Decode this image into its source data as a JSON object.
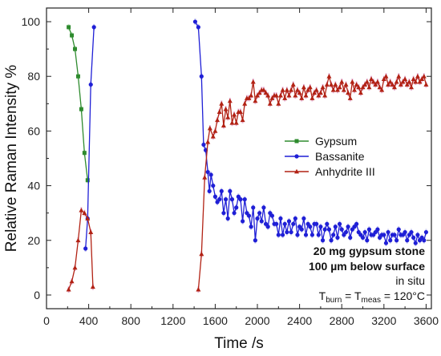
{
  "chart_data": {
    "type": "line",
    "xlabel": "Time /s",
    "ylabel": "Relative Raman Intensity %",
    "xlim": [
      0,
      3650
    ],
    "ylim": [
      -5,
      105
    ],
    "xticks": [
      0,
      400,
      800,
      1200,
      1600,
      2000,
      2400,
      2800,
      3200,
      3600
    ],
    "yticks": [
      0,
      20,
      40,
      60,
      80,
      100
    ],
    "grid": false,
    "legend_position": "center-right",
    "series": [
      {
        "name": "Gypsum",
        "color": "#2e8b2e",
        "marker": "square",
        "points": [
          [
            210,
            98
          ],
          [
            240,
            95
          ],
          [
            270,
            90
          ],
          [
            300,
            80
          ],
          [
            330,
            68
          ],
          [
            360,
            52
          ],
          [
            390,
            42
          ]
        ]
      },
      {
        "name": "Bassanite",
        "color": "#1f1fd6",
        "marker": "circle",
        "segments": [
          [
            [
              370,
              17
            ],
            [
              390,
              28
            ],
            [
              420,
              77
            ],
            [
              450,
              98
            ]
          ],
          [
            [
              1410,
              100
            ],
            [
              1440,
              98
            ],
            [
              1470,
              80
            ],
            [
              1490,
              55
            ],
            [
              1510,
              53
            ],
            [
              1530,
              45
            ],
            [
              1545,
              38
            ],
            [
              1560,
              44
            ],
            [
              1580,
              40
            ],
            [
              1600,
              36
            ],
            [
              1620,
              34
            ],
            [
              1640,
              35
            ],
            [
              1660,
              38
            ],
            [
              1680,
              30
            ],
            [
              1700,
              35
            ],
            [
              1720,
              28
            ],
            [
              1740,
              38
            ],
            [
              1760,
              35
            ],
            [
              1780,
              30
            ],
            [
              1800,
              32
            ],
            [
              1820,
              36
            ],
            [
              1840,
              35
            ],
            [
              1860,
              27
            ],
            [
              1880,
              35
            ],
            [
              1900,
              30
            ],
            [
              1920,
              29
            ],
            [
              1940,
              25
            ],
            [
              1960,
              32
            ],
            [
              1980,
              20
            ],
            [
              2000,
              28
            ],
            [
              2020,
              30
            ],
            [
              2040,
              27
            ],
            [
              2060,
              32
            ],
            [
              2080,
              26
            ],
            [
              2100,
              25
            ],
            [
              2120,
              30
            ],
            [
              2140,
              29
            ],
            [
              2160,
              26
            ],
            [
              2180,
              26
            ],
            [
              2200,
              22
            ],
            [
              2220,
              28
            ],
            [
              2240,
              22
            ],
            [
              2260,
              26
            ],
            [
              2280,
              23
            ],
            [
              2300,
              27
            ],
            [
              2320,
              23
            ],
            [
              2340,
              26
            ],
            [
              2360,
              28
            ],
            [
              2380,
              22
            ],
            [
              2400,
              25
            ],
            [
              2420,
              24
            ],
            [
              2440,
              28
            ],
            [
              2460,
              22
            ],
            [
              2480,
              26
            ],
            [
              2500,
              25
            ],
            [
              2520,
              22
            ],
            [
              2540,
              26
            ],
            [
              2560,
              26
            ],
            [
              2580,
              22
            ],
            [
              2600,
              25
            ],
            [
              2620,
              20
            ],
            [
              2640,
              24
            ],
            [
              2660,
              26
            ],
            [
              2680,
              24
            ],
            [
              2700,
              20
            ],
            [
              2720,
              22
            ],
            [
              2740,
              25
            ],
            [
              2760,
              21
            ],
            [
              2780,
              26
            ],
            [
              2800,
              24
            ],
            [
              2820,
              22
            ],
            [
              2840,
              23
            ],
            [
              2860,
              25
            ],
            [
              2880,
              21
            ],
            [
              2900,
              24
            ],
            [
              2920,
              25
            ],
            [
              2940,
              26
            ],
            [
              2960,
              23
            ],
            [
              2980,
              22
            ],
            [
              3000,
              21
            ],
            [
              3020,
              23
            ],
            [
              3040,
              20
            ],
            [
              3060,
              24
            ],
            [
              3080,
              22
            ],
            [
              3100,
              22
            ],
            [
              3120,
              23
            ],
            [
              3140,
              24
            ],
            [
              3160,
              21
            ],
            [
              3180,
              22
            ],
            [
              3200,
              22
            ],
            [
              3220,
              19
            ],
            [
              3240,
              23
            ],
            [
              3260,
              20
            ],
            [
              3280,
              22
            ],
            [
              3300,
              22
            ],
            [
              3320,
              20
            ],
            [
              3340,
              24
            ],
            [
              3360,
              22
            ],
            [
              3380,
              22
            ],
            [
              3400,
              23
            ],
            [
              3420,
              20
            ],
            [
              3440,
              22
            ],
            [
              3460,
              23
            ],
            [
              3480,
              21
            ],
            [
              3500,
              19
            ],
            [
              3520,
              22
            ],
            [
              3540,
              20
            ],
            [
              3560,
              21
            ],
            [
              3580,
              20
            ],
            [
              3600,
              23
            ]
          ]
        ]
      },
      {
        "name": "Anhydrite III",
        "color": "#b22214",
        "marker": "triangle",
        "segments": [
          [
            [
              210,
              2
            ],
            [
              240,
              5
            ],
            [
              270,
              10
            ],
            [
              300,
              20
            ],
            [
              330,
              31
            ],
            [
              360,
              30
            ],
            [
              390,
              28
            ],
            [
              420,
              23
            ],
            [
              440,
              3
            ]
          ],
          [
            [
              1440,
              2
            ],
            [
              1470,
              15
            ],
            [
              1500,
              43
            ],
            [
              1530,
              56
            ],
            [
              1550,
              61
            ],
            [
              1580,
              58
            ],
            [
              1600,
              60
            ],
            [
              1620,
              64
            ],
            [
              1640,
              67
            ],
            [
              1660,
              70
            ],
            [
              1680,
              62
            ],
            [
              1700,
              68
            ],
            [
              1720,
              65
            ],
            [
              1740,
              71
            ],
            [
              1760,
              63
            ],
            [
              1780,
              66
            ],
            [
              1800,
              63
            ],
            [
              1820,
              67
            ],
            [
              1840,
              67
            ],
            [
              1860,
              64
            ],
            [
              1880,
              70
            ],
            [
              1900,
              72
            ],
            [
              1920,
              72
            ],
            [
              1940,
              73
            ],
            [
              1960,
              78
            ],
            [
              1980,
              71
            ],
            [
              2000,
              73
            ],
            [
              2020,
              74
            ],
            [
              2040,
              75
            ],
            [
              2060,
              75
            ],
            [
              2080,
              74
            ],
            [
              2100,
              73
            ],
            [
              2120,
              70
            ],
            [
              2140,
              72
            ],
            [
              2160,
              73
            ],
            [
              2180,
              73
            ],
            [
              2200,
              70
            ],
            [
              2220,
              73
            ],
            [
              2240,
              75
            ],
            [
              2260,
              72
            ],
            [
              2280,
              75
            ],
            [
              2300,
              73
            ],
            [
              2320,
              75
            ],
            [
              2340,
              77
            ],
            [
              2360,
              73
            ],
            [
              2380,
              75
            ],
            [
              2400,
              74
            ],
            [
              2420,
              72
            ],
            [
              2440,
              76
            ],
            [
              2460,
              73
            ],
            [
              2480,
              75
            ],
            [
              2500,
              76
            ],
            [
              2520,
              72
            ],
            [
              2540,
              74
            ],
            [
              2560,
              75
            ],
            [
              2580,
              73
            ],
            [
              2600,
              74
            ],
            [
              2620,
              76
            ],
            [
              2640,
              73
            ],
            [
              2660,
              77
            ],
            [
              2680,
              80
            ],
            [
              2700,
              77
            ],
            [
              2720,
              75
            ],
            [
              2740,
              77
            ],
            [
              2760,
              75
            ],
            [
              2780,
              76
            ],
            [
              2800,
              78
            ],
            [
              2820,
              75
            ],
            [
              2840,
              77
            ],
            [
              2860,
              74
            ],
            [
              2880,
              72
            ],
            [
              2900,
              78
            ],
            [
              2920,
              75
            ],
            [
              2940,
              77
            ],
            [
              2960,
              76
            ],
            [
              2980,
              74
            ],
            [
              3000,
              76
            ],
            [
              3020,
              77
            ],
            [
              3040,
              78
            ],
            [
              3060,
              76
            ],
            [
              3080,
              79
            ],
            [
              3100,
              78
            ],
            [
              3120,
              77
            ],
            [
              3140,
              78
            ],
            [
              3160,
              76
            ],
            [
              3180,
              75
            ],
            [
              3200,
              79
            ],
            [
              3220,
              80
            ],
            [
              3240,
              77
            ],
            [
              3260,
              78
            ],
            [
              3280,
              77
            ],
            [
              3300,
              76
            ],
            [
              3320,
              78
            ],
            [
              3340,
              80
            ],
            [
              3360,
              77
            ],
            [
              3380,
              78
            ],
            [
              3400,
              79
            ],
            [
              3420,
              77
            ],
            [
              3440,
              78
            ],
            [
              3460,
              76
            ],
            [
              3480,
              79
            ],
            [
              3500,
              78
            ],
            [
              3520,
              80
            ],
            [
              3540,
              78
            ],
            [
              3560,
              79
            ],
            [
              3580,
              80
            ],
            [
              3600,
              77
            ]
          ]
        ]
      }
    ],
    "annotations": {
      "line1": "20 mg gypsum stone",
      "line2": "100 µm below surface",
      "line3": "in situ",
      "line4_T1": "T",
      "line4_sub1": "burn",
      "line4_eq": " = T",
      "line4_sub2": "meas",
      "line4_val": " = 120°C"
    }
  }
}
